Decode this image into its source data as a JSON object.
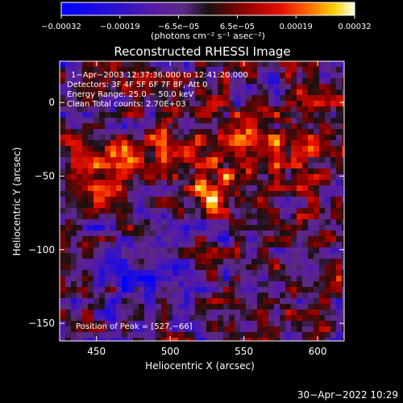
{
  "chart_data": {
    "type": "heatmap",
    "title": "Reconstructed RHESSI Image",
    "xlabel": "Heliocentric X (arcsec)",
    "ylabel": "Heliocentric Y (arcsec)",
    "xlim": [
      425,
      618
    ],
    "ylim": [
      -162,
      28
    ],
    "x_ticks": [
      450,
      500,
      550,
      600
    ],
    "y_ticks": [
      0,
      -50,
      -100,
      -150
    ],
    "x_tick_labels": [
      "450",
      "500",
      "550",
      "600"
    ],
    "y_tick_labels": [
      "0",
      "−50",
      "−100",
      "−150"
    ],
    "colorbar": {
      "range": [
        -0.00032,
        0.00032
      ],
      "tick_labels": [
        "−0.00032",
        "−0.00019",
        "−6.5e−05",
        "6.5e−05",
        "0.00019",
        "0.00032"
      ],
      "units_label": "(photons cm⁻² s⁻¹ asec⁻²)"
    },
    "annotations": [
      "1−Apr−2003 12:37:36.000 to 12:41:20.000",
      "Detectors: 3F 4F 5F 6F 7F 8F, Att 0",
      "Energy Range: 25.0 − 50.0 keV",
      "Clean     Total counts: 2.70E+03"
    ],
    "peak_label": "Position of Peak = [527,−66]",
    "peak": [
      527,
      -66
    ],
    "grid": false
  },
  "footer": {
    "timestamp": "30−Apr−2022 10:29"
  }
}
